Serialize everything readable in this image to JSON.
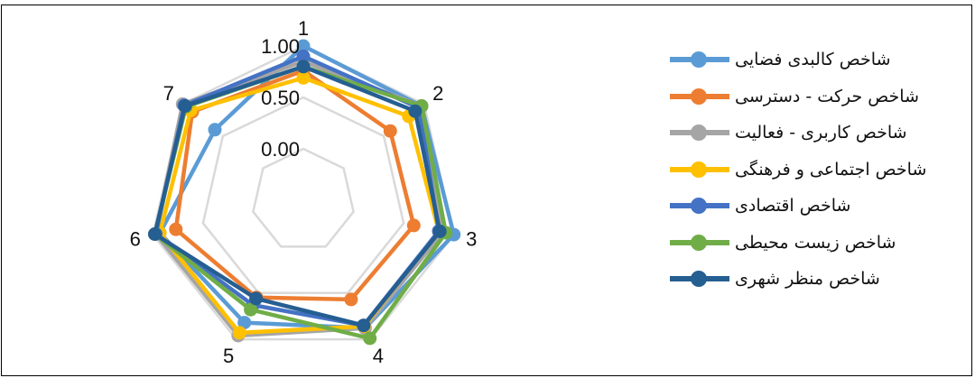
{
  "chart_data": {
    "type": "radar",
    "categories": [
      "1",
      "2",
      "3",
      "4",
      "5",
      "6",
      "7"
    ],
    "radial_ticks": [
      "0.00",
      "0.50",
      "1.00"
    ],
    "rmin": -0.5,
    "rmax": 1.0,
    "grid": true,
    "legend_position": "right",
    "series": [
      {
        "name": "شاخص کالبدی فضایی",
        "color": "#5B9BD5",
        "values": [
          1.0,
          0.97,
          1.0,
          0.88,
          0.82,
          0.93,
          0.6
        ]
      },
      {
        "name": "شاخص حرکت - دسترسی",
        "color": "#ED7D31",
        "values": [
          0.76,
          0.58,
          0.6,
          0.57,
          0.55,
          0.77,
          0.88
        ]
      },
      {
        "name": "شاخص کاربری - فعالیت",
        "color": "#A5A5A5",
        "values": [
          0.85,
          0.97,
          0.89,
          0.88,
          0.96,
          0.97,
          1.0
        ]
      },
      {
        "name": "شاخص اجتماعی و فرهنگی",
        "color": "#FFC000",
        "values": [
          0.69,
          0.81,
          0.85,
          0.86,
          0.93,
          0.93,
          0.9
        ]
      },
      {
        "name": "شاخص اقتصادی",
        "color": "#4472C4",
        "values": [
          0.9,
          0.94,
          0.85,
          0.85,
          0.63,
          0.97,
          0.98
        ]
      },
      {
        "name": "شاخص زیست محیطی",
        "color": "#70AD47",
        "values": [
          0.8,
          0.97,
          0.92,
          0.99,
          0.68,
          0.98,
          0.96
        ]
      },
      {
        "name": "شاخص منظر شهری",
        "color": "#255E91",
        "values": [
          0.8,
          0.89,
          0.86,
          0.85,
          0.56,
          0.98,
          0.97
        ]
      }
    ]
  }
}
